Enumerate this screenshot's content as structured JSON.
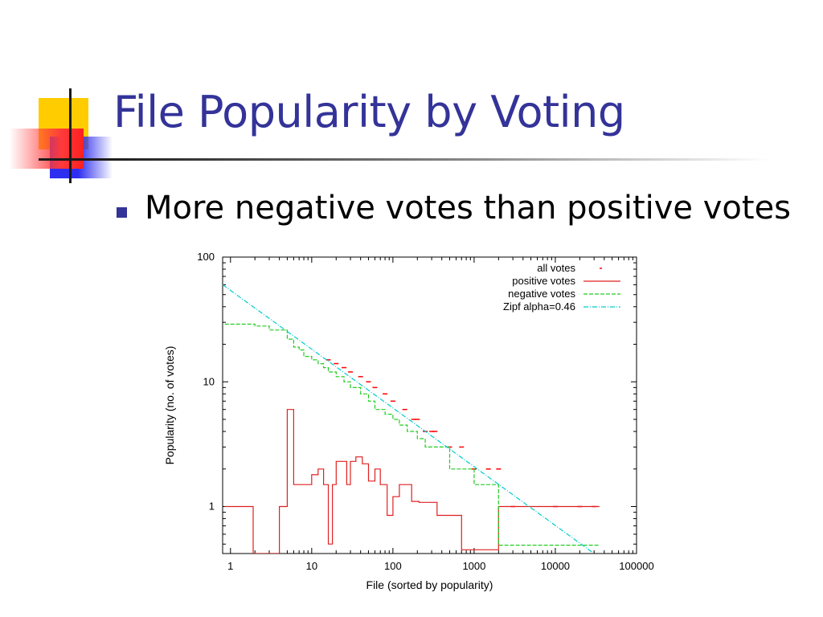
{
  "slide": {
    "title": "File Popularity by Voting",
    "bullets": [
      "More negative votes than positive votes"
    ]
  },
  "colors": {
    "title": "#333399",
    "bullet": "#333399",
    "deco_yellow": "#ffcc00",
    "deco_blue": "#2e2ef0",
    "deco_red": "#ff3a3a",
    "series_all": "#ff0000",
    "series_positive": "#e02020",
    "series_negative": "#22cc22",
    "series_zipf": "#00cccc"
  },
  "chart_data": {
    "type": "line",
    "xlabel": "File (sorted by popularity)",
    "ylabel": "Popularity (no. of votes)",
    "xscale": "log",
    "yscale": "log",
    "xlim": [
      0.8,
      100000
    ],
    "ylim": [
      0.42,
      100
    ],
    "x_ticks": [
      {
        "value": 1,
        "label": "1"
      },
      {
        "value": 10,
        "label": "10"
      },
      {
        "value": 100,
        "label": "100"
      },
      {
        "value": 1000,
        "label": "1000"
      },
      {
        "value": 10000,
        "label": "10000"
      },
      {
        "value": 100000,
        "label": "100000"
      }
    ],
    "y_ticks": [
      {
        "value": 1,
        "label": "1"
      },
      {
        "value": 10,
        "label": "10"
      },
      {
        "value": 100,
        "label": "100"
      }
    ],
    "grid": false,
    "legend_position": "top-right",
    "series": [
      {
        "name": "all votes",
        "style": "dots",
        "color": "#ff0000",
        "points": [
          [
            16,
            15
          ],
          [
            20,
            14
          ],
          [
            25,
            13
          ],
          [
            30,
            12
          ],
          [
            40,
            11
          ],
          [
            50,
            10
          ],
          [
            60,
            9
          ],
          [
            80,
            8
          ],
          [
            100,
            7
          ],
          [
            140,
            6
          ],
          [
            180,
            5
          ],
          [
            200,
            5
          ],
          [
            250,
            4
          ],
          [
            300,
            4
          ],
          [
            330,
            4
          ],
          [
            500,
            3
          ],
          [
            700,
            3
          ],
          [
            1000,
            2
          ],
          [
            1500,
            2
          ],
          [
            2000,
            2
          ],
          [
            3000,
            1
          ],
          [
            10000,
            1
          ],
          [
            20000,
            1
          ],
          [
            30000,
            1
          ]
        ]
      },
      {
        "name": "positive votes",
        "style": "step",
        "color": "#e02020",
        "points": [
          [
            0.85,
            1
          ],
          [
            1.9,
            1
          ],
          [
            1.9,
            0.42
          ],
          [
            4,
            0.42
          ],
          [
            4,
            1
          ],
          [
            5,
            1
          ],
          [
            5,
            6
          ],
          [
            6,
            6
          ],
          [
            6,
            1.5
          ],
          [
            10,
            1.5
          ],
          [
            10,
            1.8
          ],
          [
            12,
            1.8
          ],
          [
            12,
            2
          ],
          [
            14,
            2
          ],
          [
            14,
            1.5
          ],
          [
            16,
            1.5
          ],
          [
            16,
            0.5
          ],
          [
            18,
            0.5
          ],
          [
            18,
            1.5
          ],
          [
            20,
            1.5
          ],
          [
            20,
            2.3
          ],
          [
            27,
            2.3
          ],
          [
            27,
            1.5
          ],
          [
            30,
            1.5
          ],
          [
            30,
            2.3
          ],
          [
            35,
            2.3
          ],
          [
            35,
            2.5
          ],
          [
            42,
            2.5
          ],
          [
            42,
            2.2
          ],
          [
            50,
            2.2
          ],
          [
            50,
            1.6
          ],
          [
            60,
            1.6
          ],
          [
            60,
            2
          ],
          [
            70,
            2
          ],
          [
            70,
            1.5
          ],
          [
            85,
            1.5
          ],
          [
            85,
            0.85
          ],
          [
            100,
            0.85
          ],
          [
            100,
            1.2
          ],
          [
            120,
            1.2
          ],
          [
            120,
            1.5
          ],
          [
            170,
            1.5
          ],
          [
            170,
            1.1
          ],
          [
            210,
            1.1
          ],
          [
            210,
            1.08
          ],
          [
            350,
            1.08
          ],
          [
            350,
            0.85
          ],
          [
            700,
            0.85
          ],
          [
            700,
            0.45
          ],
          [
            2000,
            0.45
          ],
          [
            2000,
            1
          ],
          [
            35000,
            1
          ]
        ]
      },
      {
        "name": "negative votes",
        "style": "step",
        "color": "#22cc22",
        "points": [
          [
            0.85,
            29
          ],
          [
            2,
            29
          ],
          [
            2,
            28
          ],
          [
            3,
            28
          ],
          [
            3,
            26
          ],
          [
            5,
            26
          ],
          [
            5,
            22
          ],
          [
            6,
            22
          ],
          [
            6,
            19
          ],
          [
            7,
            19
          ],
          [
            7,
            18
          ],
          [
            8,
            18
          ],
          [
            8,
            16
          ],
          [
            10,
            16
          ],
          [
            10,
            15
          ],
          [
            12,
            15
          ],
          [
            12,
            14
          ],
          [
            14,
            14
          ],
          [
            14,
            13
          ],
          [
            16,
            13
          ],
          [
            16,
            12
          ],
          [
            20,
            12
          ],
          [
            20,
            11
          ],
          [
            25,
            11
          ],
          [
            25,
            10
          ],
          [
            30,
            10
          ],
          [
            30,
            9
          ],
          [
            40,
            9
          ],
          [
            40,
            8
          ],
          [
            50,
            8
          ],
          [
            50,
            7
          ],
          [
            60,
            7
          ],
          [
            60,
            6
          ],
          [
            80,
            6
          ],
          [
            80,
            5.5
          ],
          [
            100,
            5.5
          ],
          [
            100,
            5
          ],
          [
            120,
            5
          ],
          [
            120,
            4.5
          ],
          [
            150,
            4.5
          ],
          [
            150,
            4
          ],
          [
            200,
            4
          ],
          [
            200,
            3.5
          ],
          [
            250,
            3.5
          ],
          [
            250,
            3
          ],
          [
            500,
            3
          ],
          [
            500,
            2
          ],
          [
            1000,
            2
          ],
          [
            1000,
            1.5
          ],
          [
            2000,
            1.5
          ],
          [
            2000,
            0.49
          ],
          [
            35000,
            0.49
          ]
        ]
      },
      {
        "name": "Zipf alpha=0.46",
        "style": "dashdot",
        "color": "#00cccc",
        "points": [
          [
            0.8,
            60
          ],
          [
            30000,
            0.42
          ]
        ]
      }
    ]
  }
}
